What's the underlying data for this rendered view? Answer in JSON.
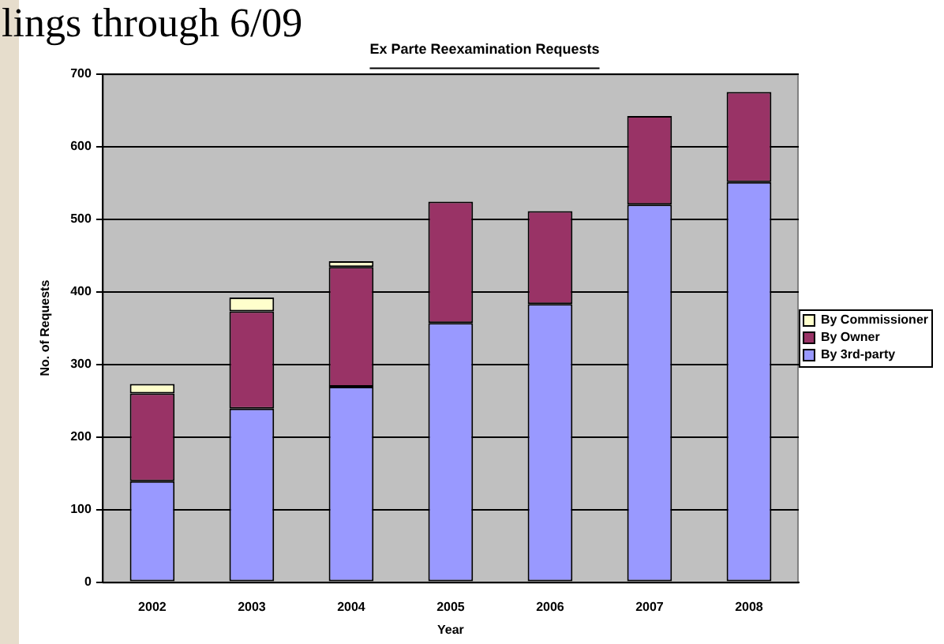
{
  "chart_data": {
    "type": "bar",
    "title": "Ex Parte Reexamination Requests",
    "xlabel": "Year",
    "ylabel": "No. of Requests",
    "annotations": [
      "lings through 6/09"
    ],
    "categories": [
      "2002",
      "2003",
      "2004",
      "2005",
      "2006",
      "2007",
      "2008"
    ],
    "stacked": true,
    "series": [
      {
        "name": "By 3rd-party",
        "color": "#9999ff",
        "values": [
          139,
          239,
          269,
          357,
          383,
          520,
          551
        ]
      },
      {
        "name": "By Owner",
        "color": "#993366",
        "values": [
          121,
          134,
          165,
          167,
          128,
          122,
          124
        ]
      },
      {
        "name": "By Commissioner",
        "color": "#ffffcc",
        "values": [
          13,
          19,
          8,
          null,
          null,
          null,
          null
        ]
      }
    ],
    "ylim": [
      0,
      700
    ],
    "yticks": [
      0,
      100,
      200,
      300,
      400,
      500,
      600,
      700
    ],
    "grid": "y",
    "legend": "right"
  }
}
